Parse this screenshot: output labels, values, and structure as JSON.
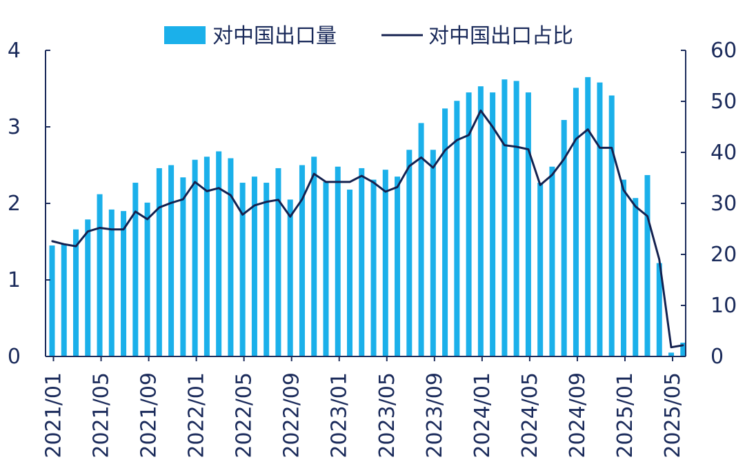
{
  "chart_data": {
    "type": "bar",
    "title": "",
    "xlabel": "",
    "ylabel": "",
    "y2label": "",
    "ylim": [
      0,
      4
    ],
    "y2lim": [
      0,
      60
    ],
    "grid": false,
    "legend_position": "top-center",
    "y_ticks": [
      "0",
      "1",
      "2",
      "3",
      "4"
    ],
    "y2_ticks": [
      "0",
      "10",
      "20",
      "30",
      "40",
      "50",
      "60"
    ],
    "x_tick_labels": [
      "2021/01",
      "2021/05",
      "2021/09",
      "2022/01",
      "2022/05",
      "2022/09",
      "2023/01",
      "2023/05",
      "2023/09",
      "2024/01",
      "2024/05",
      "2024/09",
      "2025/01",
      "2025/05"
    ],
    "categories": [
      "2021/01",
      "2021/02",
      "2021/03",
      "2021/04",
      "2021/05",
      "2021/06",
      "2021/07",
      "2021/08",
      "2021/09",
      "2021/10",
      "2021/11",
      "2021/12",
      "2022/01",
      "2022/02",
      "2022/03",
      "2022/04",
      "2022/05",
      "2022/06",
      "2022/07",
      "2022/08",
      "2022/09",
      "2022/10",
      "2022/11",
      "2022/12",
      "2023/01",
      "2023/02",
      "2023/03",
      "2023/04",
      "2023/05",
      "2023/06",
      "2023/07",
      "2023/08",
      "2023/09",
      "2023/10",
      "2023/11",
      "2023/12",
      "2024/01",
      "2024/02",
      "2024/03",
      "2024/04",
      "2024/05",
      "2024/06",
      "2024/07",
      "2024/08",
      "2024/09",
      "2024/10",
      "2024/11",
      "2024/12",
      "2025/01",
      "2025/02",
      "2025/03",
      "2025/04",
      "2025/05",
      "2025/06"
    ],
    "series": [
      {
        "name": "对中国出口量",
        "type": "bar",
        "axis": "left",
        "color": "#1bb0ea",
        "values": [
          1.45,
          1.47,
          1.66,
          1.79,
          2.12,
          1.92,
          1.9,
          2.27,
          2.01,
          2.46,
          2.5,
          2.34,
          2.57,
          2.61,
          2.68,
          2.59,
          2.27,
          2.35,
          2.27,
          2.46,
          2.05,
          2.5,
          2.61,
          2.28,
          2.48,
          2.18,
          2.46,
          2.31,
          2.44,
          2.35,
          2.7,
          3.05,
          2.7,
          3.24,
          3.34,
          3.45,
          3.53,
          3.45,
          3.62,
          3.6,
          3.45,
          2.27,
          2.48,
          3.09,
          3.51,
          3.65,
          3.58,
          3.41,
          2.31,
          2.07,
          2.37,
          1.22,
          0.05,
          0.18
        ]
      },
      {
        "name": "对中国出口占比",
        "type": "line",
        "axis": "right",
        "color": "#14214f",
        "values": [
          22.6,
          22.0,
          21.6,
          24.5,
          25.2,
          24.9,
          24.9,
          28.4,
          26.9,
          29.2,
          30.1,
          30.8,
          34.2,
          32.4,
          33.0,
          31.6,
          27.8,
          29.6,
          30.3,
          30.7,
          27.4,
          30.8,
          35.8,
          34.2,
          34.2,
          34.2,
          35.4,
          34.1,
          32.3,
          33.2,
          37.3,
          39.0,
          37.0,
          40.4,
          42.4,
          43.4,
          48.2,
          45.0,
          41.4,
          41.1,
          40.6,
          33.6,
          35.6,
          38.7,
          42.6,
          44.5,
          40.9,
          40.9,
          32.6,
          29.4,
          27.5,
          19.0,
          1.8,
          2.2
        ]
      }
    ]
  }
}
